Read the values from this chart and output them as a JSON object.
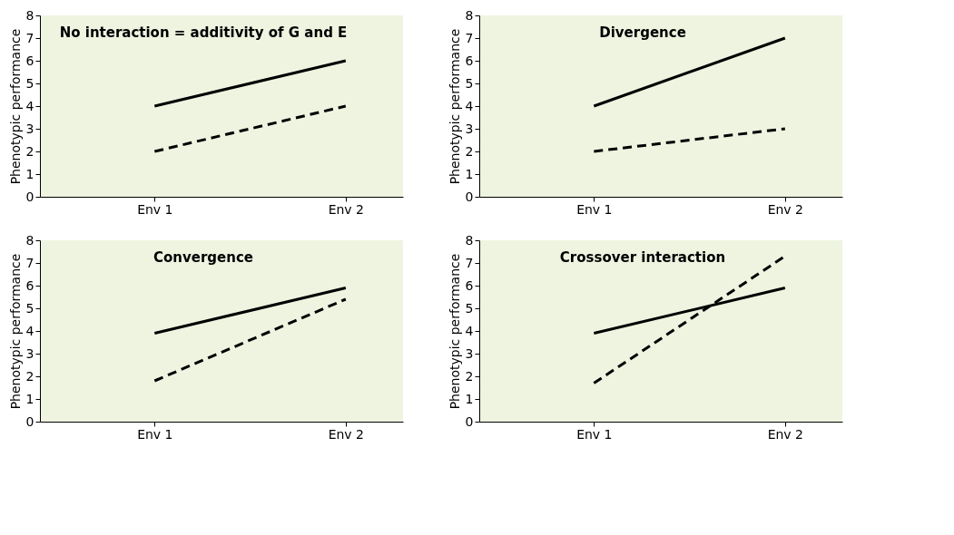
{
  "chart_data": [
    {
      "type": "line",
      "title": "No interaction = additivity of G and E",
      "ylabel": "Phenotypic performance",
      "categories": [
        "Env 1",
        "Env 2"
      ],
      "ylim": [
        0,
        8
      ],
      "yticks": [
        0,
        1,
        2,
        3,
        4,
        5,
        6,
        7,
        8
      ],
      "grid": false,
      "legend": false,
      "marker": "none",
      "series": [
        {
          "color": "#000000",
          "line_style": "solid",
          "values": [
            4,
            6
          ]
        },
        {
          "color": "#000000",
          "line_style": "dashed",
          "values": [
            2,
            4
          ]
        }
      ]
    },
    {
      "type": "line",
      "title": "Convergence",
      "ylabel": "Phenotypic performance",
      "categories": [
        "Env 1",
        "Env 2"
      ],
      "ylim": [
        0,
        8
      ],
      "yticks": [
        0,
        1,
        2,
        3,
        4,
        5,
        6,
        7,
        8
      ],
      "grid": false,
      "legend": false,
      "marker": "none",
      "series": [
        {
          "color": "#000000",
          "line_style": "solid",
          "values": [
            3.9,
            5.9
          ]
        },
        {
          "color": "#000000",
          "line_style": "dashed",
          "values": [
            1.8,
            5.4
          ]
        }
      ]
    },
    {
      "type": "line",
      "title": "Divergence",
      "ylabel": "Phenotypic performance",
      "categories": [
        "Env 1",
        "Env 2"
      ],
      "ylim": [
        0,
        8
      ],
      "yticks": [
        0,
        1,
        2,
        3,
        4,
        5,
        6,
        7,
        8
      ],
      "grid": false,
      "legend": false,
      "marker": "none",
      "series": [
        {
          "color": "#000000",
          "line_style": "solid",
          "values": [
            4,
            7
          ]
        },
        {
          "color": "#000000",
          "line_style": "dashed",
          "values": [
            2,
            3
          ]
        }
      ]
    },
    {
      "type": "line",
      "title": "Crossover interaction",
      "ylabel": "Phenotypic performance",
      "categories": [
        "Env 1",
        "Env 2"
      ],
      "ylim": [
        0,
        8
      ],
      "yticks": [
        0,
        1,
        2,
        3,
        4,
        5,
        6,
        7,
        8
      ],
      "grid": false,
      "legend": false,
      "marker": "none",
      "series": [
        {
          "color": "#000000",
          "line_style": "solid",
          "values": [
            3.9,
            5.9
          ]
        },
        {
          "color": "#000000",
          "line_style": "dashed",
          "values": [
            1.7,
            7.3
          ]
        }
      ]
    }
  ]
}
